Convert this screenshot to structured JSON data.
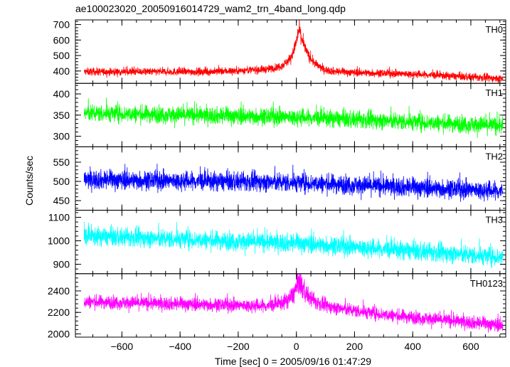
{
  "chart_data": {
    "type": "line",
    "title": "ae100023020_20050916014729_wam2_trn_4band_long.qdp",
    "xlabel": "Time [sec] 0 = 2005/09/16 01:47:29",
    "ylabel": "Counts/sec",
    "xlim": [
      -760,
      720
    ],
    "x_data_range": [
      -730,
      710
    ],
    "x_ticks": [
      -600,
      -400,
      -200,
      0,
      200,
      400,
      600
    ],
    "x_tick_labels": [
      "−600",
      "−400",
      "−200",
      "0",
      "200",
      "400",
      "600"
    ],
    "grid": false,
    "legend": "none",
    "panels": [
      {
        "name": "TH0",
        "color": "#ff0000",
        "ylim": [
          320,
          730
        ],
        "y_ticks": [
          400,
          500,
          600,
          700
        ],
        "y_tick_labels": [
          "400",
          "500",
          "600",
          "700"
        ],
        "baseline": [
          [
            -730,
            395
          ],
          [
            -300,
            395
          ],
          [
            -100,
            410
          ],
          [
            0,
            430
          ],
          [
            100,
            395
          ],
          [
            400,
            380
          ],
          [
            710,
            350
          ]
        ],
        "peak": {
          "x": 10,
          "y": 720
        },
        "noise": 22
      },
      {
        "name": "TH1",
        "color": "#00ff00",
        "ylim": [
          275,
          425
        ],
        "y_ticks": [
          300,
          350,
          400
        ],
        "y_tick_labels": [
          "300",
          "350",
          "400"
        ],
        "baseline": [
          [
            -730,
            355
          ],
          [
            0,
            345
          ],
          [
            710,
            325
          ]
        ],
        "noise": 18
      },
      {
        "name": "TH2",
        "color": "#0000ff",
        "ylim": [
          425,
          590
        ],
        "y_ticks": [
          450,
          500,
          550
        ],
        "y_tick_labels": [
          "450",
          "500",
          "550"
        ],
        "baseline": [
          [
            -730,
            505
          ],
          [
            0,
            497
          ],
          [
            710,
            475
          ]
        ],
        "noise": 22
      },
      {
        "name": "TH3",
        "color": "#00ffff",
        "ylim": [
          860,
          1130
        ],
        "y_ticks": [
          900,
          1000,
          1100
        ],
        "y_tick_labels": [
          "900",
          "1000",
          "1100"
        ],
        "baseline": [
          [
            -730,
            1020
          ],
          [
            0,
            990
          ],
          [
            710,
            930
          ]
        ],
        "noise": 35
      },
      {
        "name": "TH0123",
        "color": "#ff00ff",
        "ylim": [
          1970,
          2560
        ],
        "y_ticks": [
          2000,
          2200,
          2400
        ],
        "y_tick_labels": [
          "2000",
          "2200",
          "2400"
        ],
        "baseline": [
          [
            -730,
            2300
          ],
          [
            -100,
            2260
          ],
          [
            0,
            2290
          ],
          [
            80,
            2260
          ],
          [
            300,
            2180
          ],
          [
            710,
            2080
          ]
        ],
        "peak": {
          "x": 10,
          "y": 2540
        },
        "noise": 55
      }
    ]
  }
}
